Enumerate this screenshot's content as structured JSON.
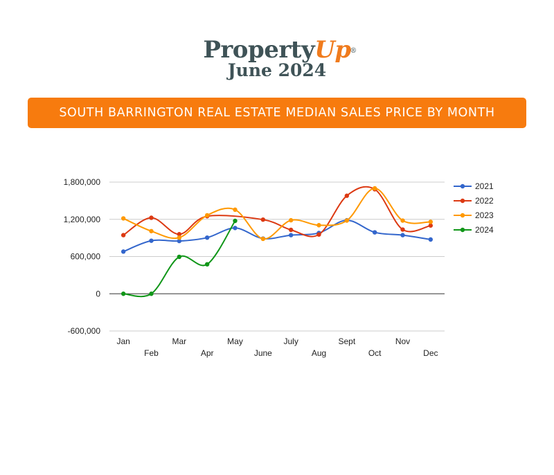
{
  "brand": {
    "name_main": "Property",
    "name_accent": "Up",
    "registered": "®",
    "edition": "June 2024"
  },
  "banner": {
    "title": "SOUTH BARRINGTON REAL ESTATE MEDIAN SALES PRICE BY MONTH",
    "color": "#f77b0e"
  },
  "chart_data": {
    "type": "line",
    "title": "SOUTH BARRINGTON REAL ESTATE MEDIAN SALES PRICE BY MONTH",
    "xlabel": "",
    "ylabel": "",
    "categories": [
      "Jan",
      "Feb",
      "Mar",
      "Apr",
      "May",
      "June",
      "July",
      "Aug",
      "Sept",
      "Oct",
      "Nov",
      "Dec"
    ],
    "ylim": [
      -600000,
      1800000
    ],
    "yticks": [
      1800000,
      1200000,
      600000,
      0,
      -600000
    ],
    "ytick_labels": [
      "1,800,000",
      "1,200,000",
      "600,000",
      "0",
      "-600,000"
    ],
    "grid": true,
    "legend_position": "right",
    "smooth": true,
    "series": [
      {
        "name": "2021",
        "color": "#3366cc",
        "values": [
          680000,
          855000,
          850000,
          905000,
          1060000,
          890000,
          945000,
          980000,
          1185000,
          990000,
          945000,
          875000
        ]
      },
      {
        "name": "2022",
        "color": "#dc3912",
        "values": [
          945000,
          1225000,
          960000,
          1250000,
          null,
          1195000,
          1030000,
          955000,
          1580000,
          1685000,
          1035000,
          1100000
        ]
      },
      {
        "name": "2023",
        "color": "#ff9900",
        "values": [
          1215000,
          1010000,
          905000,
          1265000,
          1355000,
          885000,
          1185000,
          1105000,
          1180000,
          1700000,
          1180000,
          1160000
        ]
      },
      {
        "name": "2024",
        "color": "#109618",
        "values": [
          0,
          0,
          595000,
          475000,
          1175000,
          null,
          null,
          null,
          null,
          null,
          null,
          null
        ]
      }
    ]
  }
}
